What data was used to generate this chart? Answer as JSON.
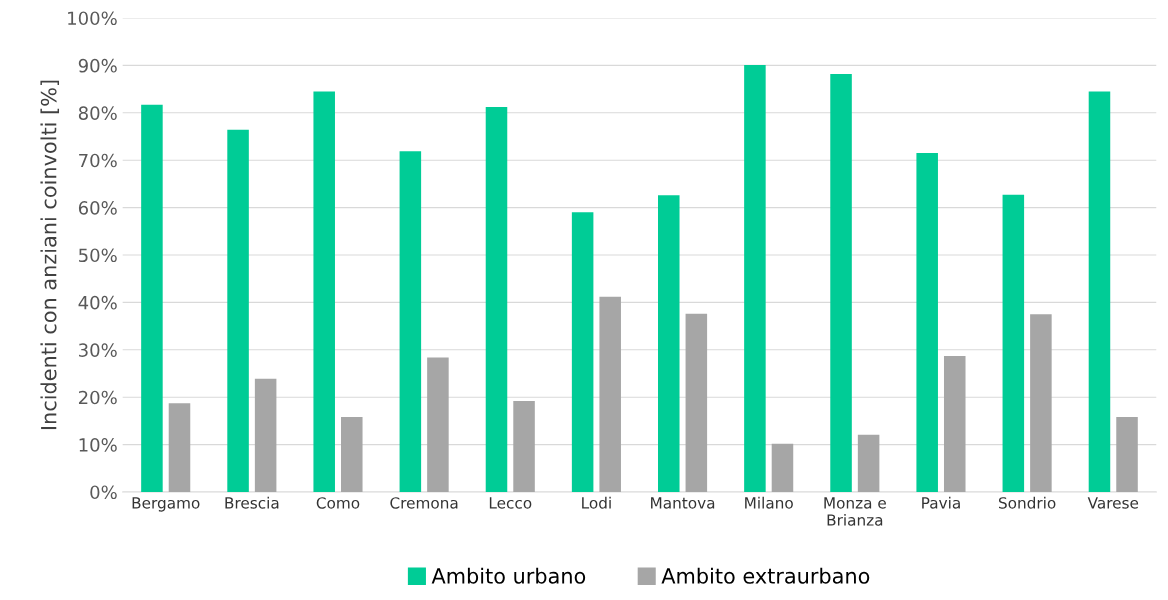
{
  "chart_data": {
    "type": "bar",
    "ylabel": "Incidenti con anziani coinvolti [%]",
    "categories": [
      "Bergamo",
      "Brescia",
      "Como",
      "Cremona",
      "Lecco",
      "Lodi",
      "Mantova",
      "Milano",
      "Monza e\nBrianza",
      "Pavia",
      "Sondrio",
      "Varese"
    ],
    "series": [
      {
        "name": "Ambito urbano",
        "color": "#00cc96",
        "values": [
          81.7,
          76.4,
          84.5,
          71.9,
          81.2,
          59.0,
          62.6,
          90.1,
          88.2,
          71.5,
          62.7,
          84.5
        ]
      },
      {
        "name": "Ambito extraurbano",
        "color": "#a6a6a6",
        "values": [
          18.7,
          23.9,
          15.8,
          28.4,
          19.2,
          41.2,
          37.6,
          10.2,
          12.1,
          28.7,
          37.5,
          15.8
        ]
      }
    ],
    "ylim": [
      0,
      100
    ],
    "yticks": [
      {
        "value": 0,
        "label": "0%"
      },
      {
        "value": 10,
        "label": "10%"
      },
      {
        "value": 20,
        "label": "20%"
      },
      {
        "value": 30,
        "label": "30%"
      },
      {
        "value": 40,
        "label": "40%"
      },
      {
        "value": 50,
        "label": "50%"
      },
      {
        "value": 60,
        "label": "60%"
      },
      {
        "value": 70,
        "label": "70%"
      },
      {
        "value": 80,
        "label": "80%"
      },
      {
        "value": 90,
        "label": "90%"
      },
      {
        "value": 100,
        "label": "100%"
      }
    ],
    "grid": "y",
    "legend": "bottom"
  }
}
